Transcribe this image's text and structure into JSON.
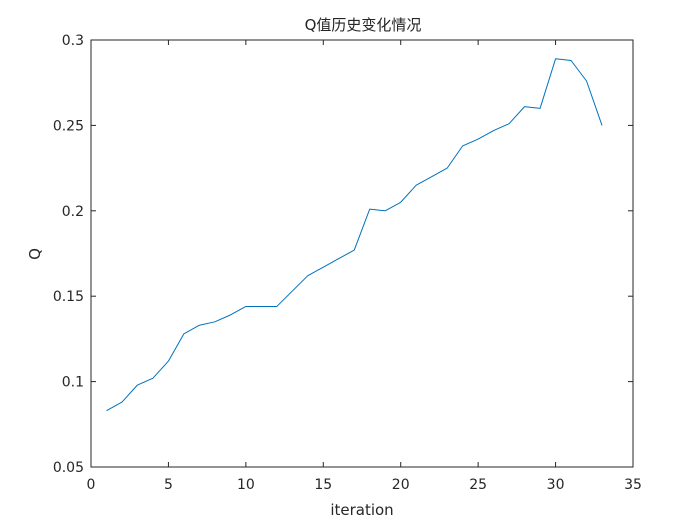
{
  "chart_data": {
    "type": "line",
    "title": "Q值历史变化情况",
    "xlabel": "iteration",
    "ylabel": "Q",
    "xlim": [
      0,
      35
    ],
    "ylim": [
      0.05,
      0.3
    ],
    "xticks": [
      0,
      5,
      10,
      15,
      20,
      25,
      30,
      35
    ],
    "yticks": [
      0.05,
      0.1,
      0.15,
      0.2,
      0.25,
      0.3
    ],
    "xtick_labels": [
      "0",
      "5",
      "10",
      "15",
      "20",
      "25",
      "30",
      "35"
    ],
    "ytick_labels": [
      "0.05",
      "0.1",
      "0.15",
      "0.2",
      "0.25",
      "0.3"
    ],
    "grid": false,
    "series": [
      {
        "color": "#0072BD",
        "x": [
          1,
          2,
          3,
          4,
          5,
          6,
          7,
          8,
          9,
          10,
          11,
          12,
          13,
          14,
          15,
          16,
          17,
          18,
          19,
          20,
          21,
          22,
          23,
          24,
          25,
          26,
          27,
          28,
          29,
          30,
          31,
          32,
          33
        ],
        "y": [
          0.083,
          0.088,
          0.098,
          0.102,
          0.112,
          0.128,
          0.133,
          0.135,
          0.139,
          0.144,
          0.144,
          0.144,
          0.153,
          0.162,
          0.167,
          0.172,
          0.177,
          0.201,
          0.2,
          0.205,
          0.215,
          0.22,
          0.225,
          0.238,
          0.242,
          0.247,
          0.251,
          0.261,
          0.26,
          0.289,
          0.288,
          0.276,
          0.25
        ]
      }
    ]
  }
}
